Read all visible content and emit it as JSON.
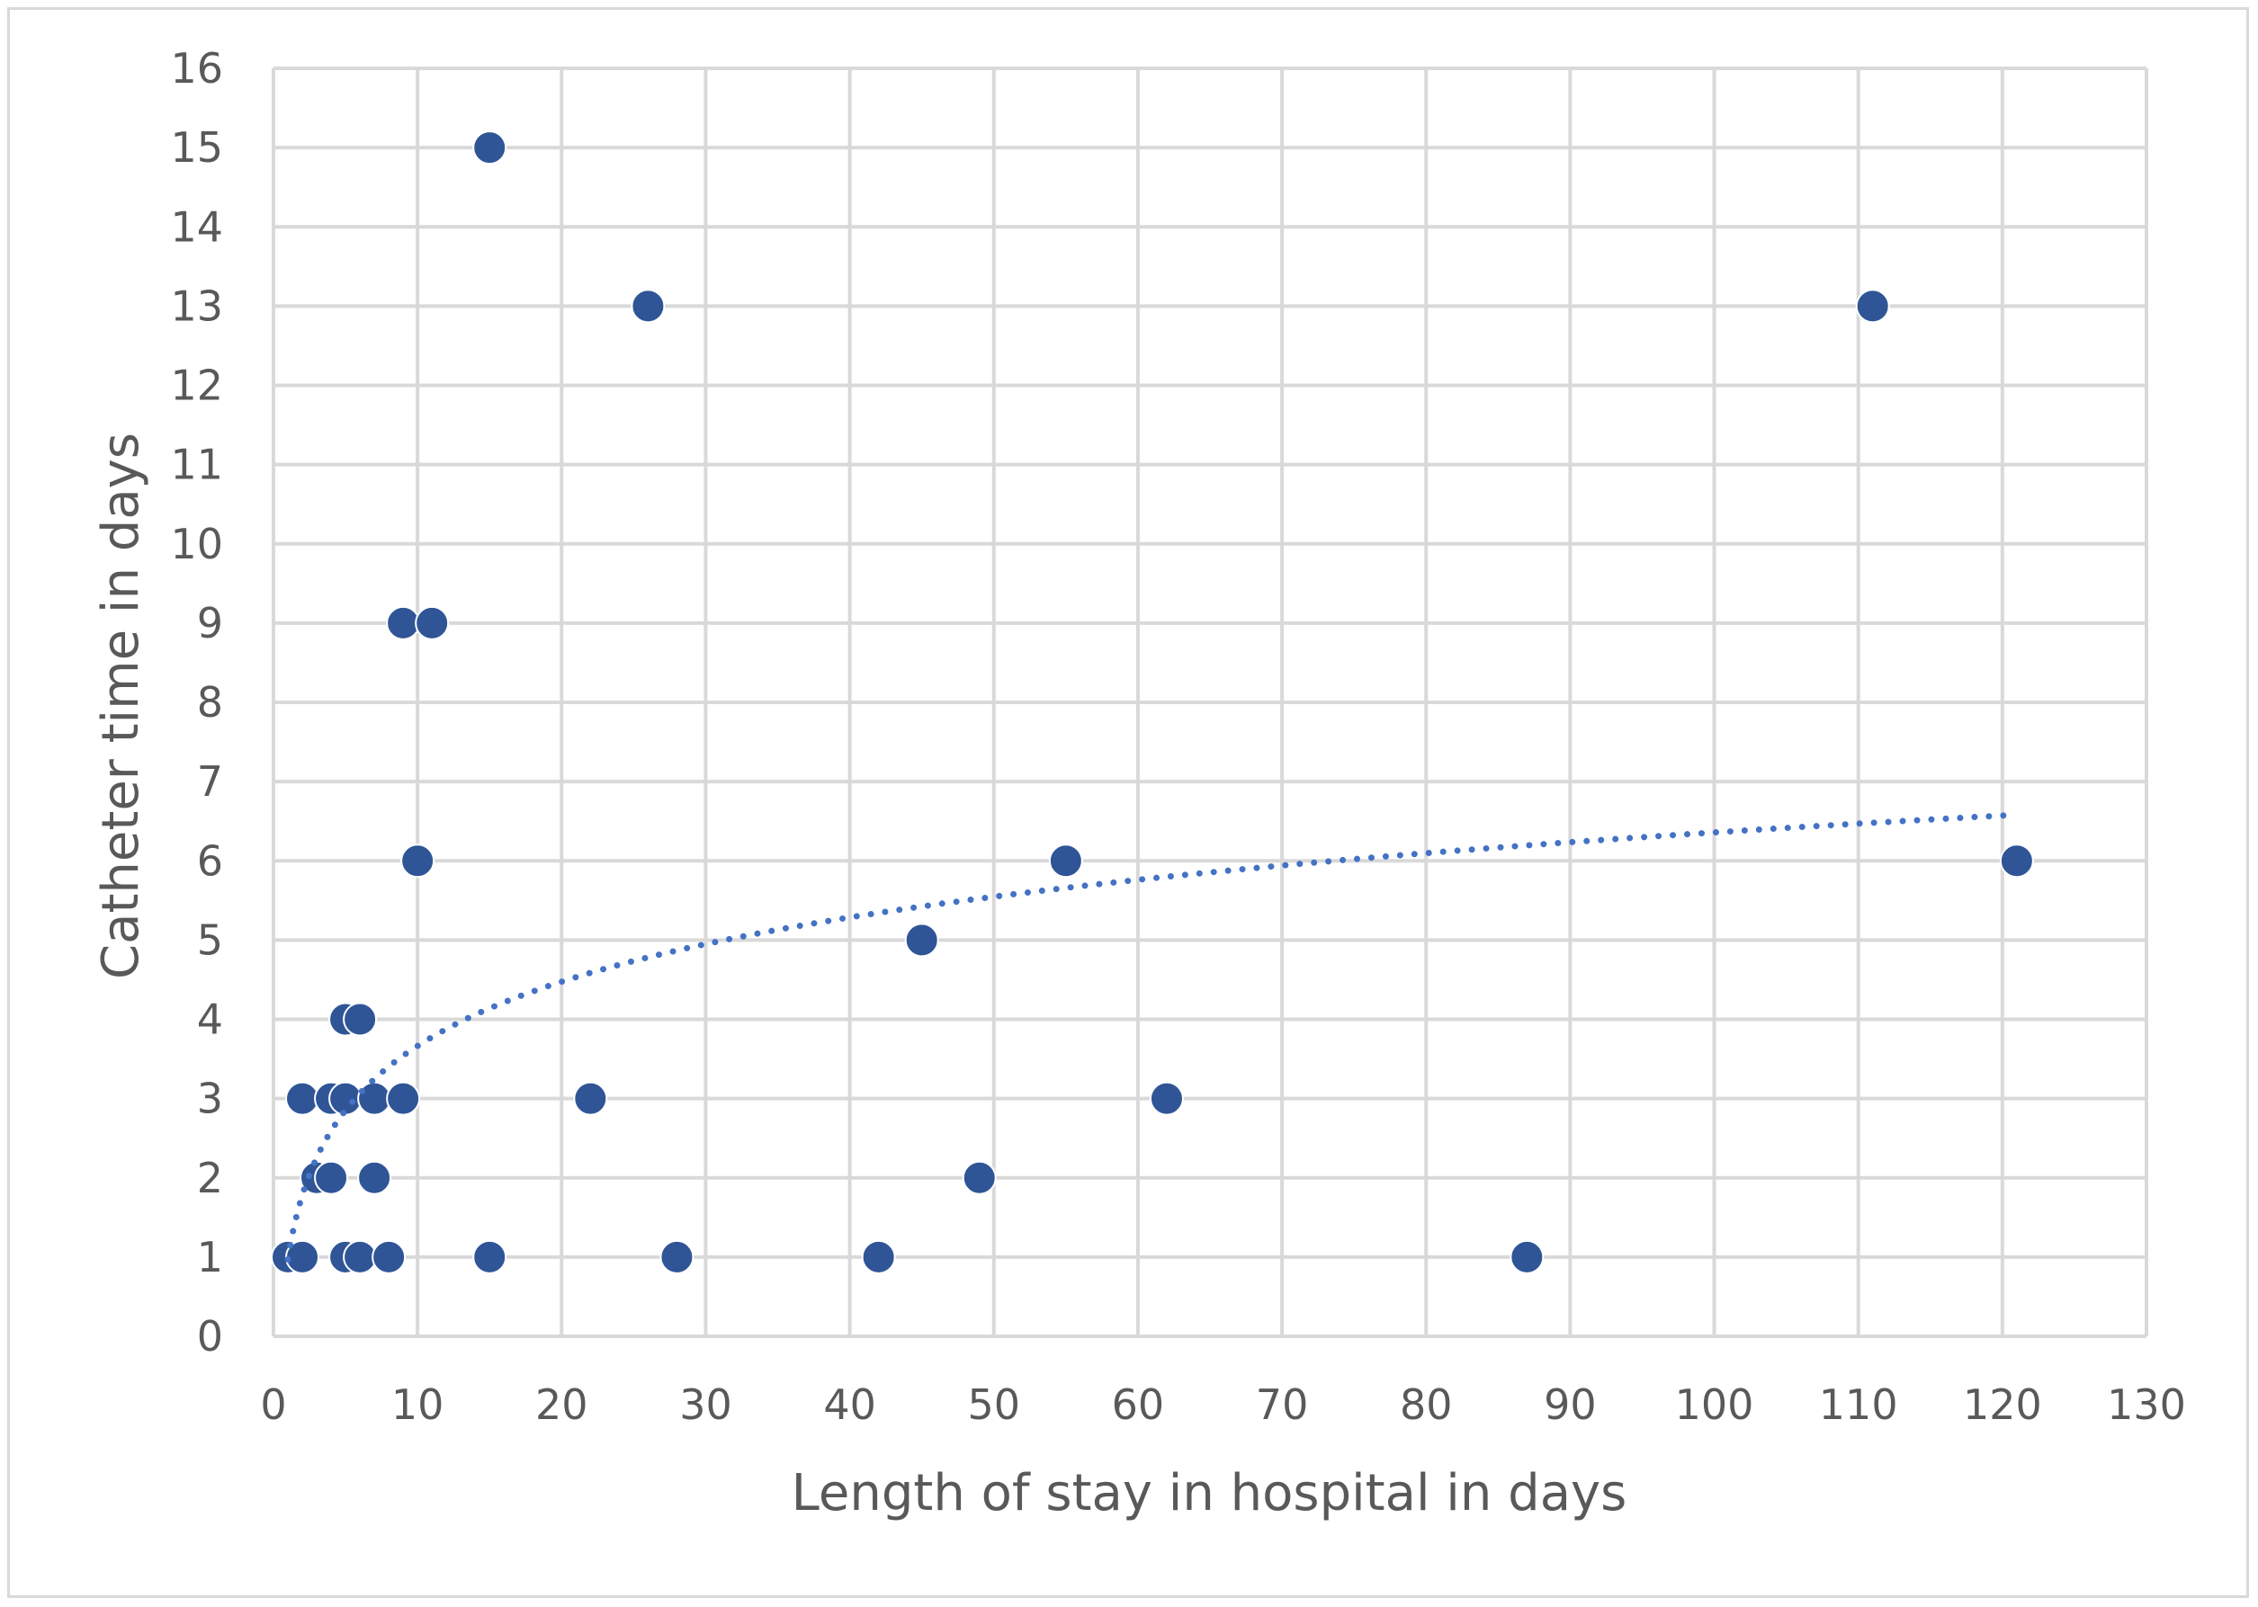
{
  "chart_data": {
    "type": "scatter",
    "title": "",
    "xlabel": "Length of stay in hospital in days",
    "ylabel": "Catheter time in days",
    "xlim": [
      0,
      130
    ],
    "ylim": [
      0,
      16
    ],
    "xticks": [
      0,
      10,
      20,
      30,
      40,
      50,
      60,
      70,
      80,
      90,
      100,
      110,
      120,
      130
    ],
    "yticks": [
      0,
      1,
      2,
      3,
      4,
      5,
      6,
      7,
      8,
      9,
      10,
      11,
      12,
      13,
      14,
      15,
      16
    ],
    "grid": true,
    "legend": "none",
    "marker_color": "#2f5597",
    "trendline": {
      "type": "logarithmic",
      "style": "dotted",
      "color": "#4472c4",
      "x_range": [
        1,
        121
      ],
      "a": 1.17,
      "b": 0.97
    },
    "series": [
      {
        "x": [
          1,
          2,
          5,
          6,
          8,
          15,
          28,
          42,
          87,
          3,
          4,
          7,
          49,
          2,
          4,
          5,
          7,
          9,
          22,
          62,
          5,
          6,
          45,
          10,
          55,
          121,
          9,
          11,
          26,
          111,
          15
        ],
        "y": [
          1,
          1,
          1,
          1,
          1,
          1,
          1,
          1,
          1,
          2,
          2,
          2,
          2,
          3,
          3,
          3,
          3,
          3,
          3,
          3,
          4,
          4,
          5,
          6,
          6,
          6,
          9,
          9,
          13,
          13,
          15
        ]
      }
    ]
  }
}
